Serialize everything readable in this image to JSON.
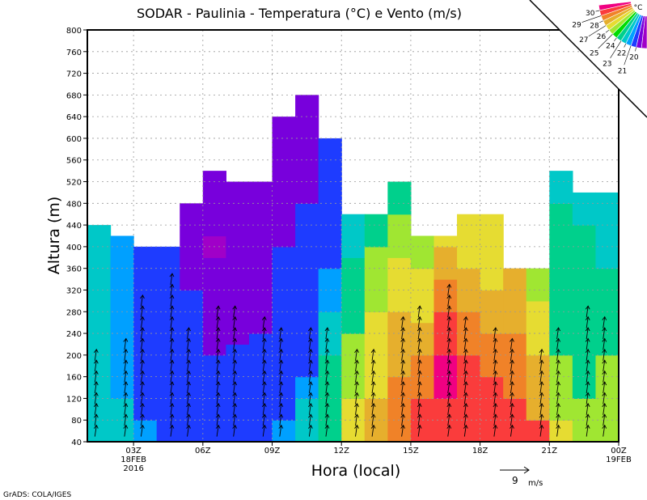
{
  "chart_data": {
    "type": "heatmap",
    "title": "SODAR - Paulinia - Temperatura (°C) e Vento (m/s)",
    "xlabel": "Hora (local)",
    "ylabel": "Altura (m)",
    "ylim": [
      40,
      800
    ],
    "yticks": [
      40,
      80,
      120,
      160,
      200,
      240,
      280,
      320,
      360,
      400,
      440,
      480,
      520,
      560,
      600,
      640,
      680,
      720,
      760,
      800
    ],
    "xrange_hours": [
      1,
      24
    ],
    "xticks": [
      {
        "hour": 3,
        "label": "03Z",
        "sub1": "18FEB",
        "sub2": "2016"
      },
      {
        "hour": 6,
        "label": "06Z"
      },
      {
        "hour": 9,
        "label": "09Z"
      },
      {
        "hour": 12,
        "label": "12Z"
      },
      {
        "hour": 15,
        "label": "15Z"
      },
      {
        "hour": 18,
        "label": "18Z"
      },
      {
        "hour": 21,
        "label": "21Z"
      },
      {
        "hour": 24,
        "label": "00Z",
        "sub1": "19FEB"
      }
    ],
    "grid": true,
    "columns_temperature_bands": [
      [
        [
          440,
          24
        ]
      ],
      [
        [
          120,
          24
        ],
        [
          420,
          23
        ]
      ],
      [
        [
          80,
          23
        ],
        [
          400,
          22
        ]
      ],
      [
        [
          400,
          22
        ]
      ],
      [
        [
          320,
          22
        ],
        [
          480,
          21
        ]
      ],
      [
        [
          200,
          22
        ],
        [
          380,
          21
        ],
        [
          420,
          20
        ],
        [
          540,
          21
        ]
      ],
      [
        [
          220,
          22
        ],
        [
          520,
          21
        ]
      ],
      [
        [
          240,
          22
        ],
        [
          520,
          21
        ]
      ],
      [
        [
          80,
          23
        ],
        [
          400,
          22
        ],
        [
          640,
          21
        ]
      ],
      [
        [
          120,
          24
        ],
        [
          160,
          23
        ],
        [
          480,
          22
        ],
        [
          680,
          21
        ]
      ],
      [
        [
          200,
          25
        ],
        [
          280,
          24
        ],
        [
          360,
          23
        ],
        [
          600,
          22
        ]
      ],
      [
        [
          120,
          27
        ],
        [
          240,
          26
        ],
        [
          380,
          25
        ],
        [
          460,
          24
        ]
      ],
      [
        [
          120,
          28
        ],
        [
          280,
          27
        ],
        [
          400,
          26
        ],
        [
          460,
          25
        ]
      ],
      [
        [
          160,
          29
        ],
        [
          280,
          28
        ],
        [
          380,
          27
        ],
        [
          460,
          26
        ],
        [
          520,
          25
        ]
      ],
      [
        [
          120,
          30
        ],
        [
          200,
          29
        ],
        [
          260,
          28
        ],
        [
          360,
          27
        ],
        [
          420,
          26
        ]
      ],
      [
        [
          120,
          30
        ],
        [
          200,
          31
        ],
        [
          280,
          30
        ],
        [
          340,
          29
        ],
        [
          400,
          28
        ],
        [
          420,
          27
        ]
      ],
      [
        [
          200,
          30
        ],
        [
          280,
          29
        ],
        [
          360,
          28
        ],
        [
          460,
          27
        ]
      ],
      [
        [
          160,
          30
        ],
        [
          240,
          29
        ],
        [
          320,
          28
        ],
        [
          460,
          27
        ]
      ],
      [
        [
          120,
          30
        ],
        [
          240,
          29
        ],
        [
          360,
          28
        ]
      ],
      [
        [
          80,
          30
        ],
        [
          200,
          28
        ],
        [
          300,
          27
        ],
        [
          360,
          26
        ]
      ],
      [
        [
          80,
          27
        ],
        [
          200,
          26
        ],
        [
          480,
          25
        ],
        [
          540,
          24
        ]
      ],
      [
        [
          120,
          26
        ],
        [
          440,
          25
        ],
        [
          500,
          24
        ]
      ],
      [
        [
          200,
          26
        ],
        [
          360,
          25
        ],
        [
          500,
          24
        ]
      ]
    ],
    "wind_column_tops_m": [
      200,
      220,
      300,
      340,
      240,
      280,
      280,
      260,
      240,
      240,
      240,
      200,
      200,
      260,
      280,
      320,
      260,
      240,
      220,
      200,
      240,
      280,
      260
    ],
    "colorbar": {
      "unit": "°C",
      "labels": [
        "30",
        "29",
        "28",
        "27",
        "26",
        "25",
        "24",
        "23",
        "22",
        "21",
        "20"
      ],
      "colors": [
        "#f00082",
        "#fa3c3c",
        "#f08228",
        "#e6af2d",
        "#e6dc32",
        "#a0e632",
        "#00dc00",
        "#00d08c",
        "#00c8c8",
        "#00a0ff",
        "#1e3cff",
        "#7800dc",
        "#a000c8"
      ]
    },
    "temp_colors": {
      "20": "#a000c8",
      "21": "#7800dc",
      "22": "#1e3cff",
      "23": "#00a0ff",
      "24": "#00c8c8",
      "25": "#00d08c",
      "26": "#a0e632",
      "27": "#e6dc32",
      "28": "#e6af2d",
      "29": "#f08228",
      "30": "#fa3c3c",
      "31": "#f00082"
    },
    "wind_reference": {
      "value": "9",
      "unit": "m/s"
    }
  },
  "footer": "GrADS: COLA/IGES"
}
